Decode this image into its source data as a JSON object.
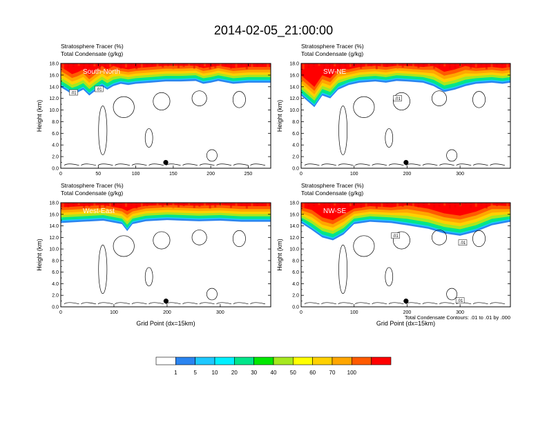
{
  "figure": {
    "title": "2014-02-05_21:00:00",
    "footnote": "Total Condensate Contours: .01 to .01 by .000"
  },
  "colorbar": {
    "colors": [
      "#ffffff",
      "#2a84f0",
      "#1ec8ff",
      "#00f0ff",
      "#00e58a",
      "#00e800",
      "#a6e81f",
      "#ffff00",
      "#ffd100",
      "#ffa600",
      "#ff5a00",
      "#ff0000"
    ],
    "labels": [
      "1",
      "5",
      "10",
      "20",
      "30",
      "40",
      "50",
      "60",
      "70",
      "100"
    ]
  },
  "chart_data": [
    {
      "type": "heatmap",
      "id": "p1",
      "label": "South-North",
      "title_lines": [
        "Stratosphere Tracer   (%)",
        "Total Condensate   (g/kg)"
      ],
      "xlabel": "",
      "ylabel": "Height (km)",
      "xlim": [
        0,
        280
      ],
      "ylim": [
        0,
        18
      ],
      "xticks": [
        0,
        50,
        100,
        150,
        200,
        250
      ],
      "yticks": [
        "0.0",
        "2.0",
        "4.0",
        "6.0",
        "8.0",
        "10.0",
        "12.0",
        "14.0",
        "16.0",
        "18.0"
      ],
      "marker": {
        "x": 140,
        "y": 1.0
      },
      "contour_labels": [
        {
          "text": ".01",
          "x": 17,
          "y": 12.9
        },
        {
          "text": ".01",
          "x": 51,
          "y": 13.5
        }
      ],
      "tracer_base": [
        [
          0,
          14.4
        ],
        [
          8,
          13.8
        ],
        [
          15,
          13.2
        ],
        [
          22,
          13.5
        ],
        [
          30,
          14.0
        ],
        [
          38,
          13.0
        ],
        [
          46,
          13.8
        ],
        [
          55,
          14.6
        ],
        [
          62,
          14.0
        ],
        [
          70,
          14.6
        ],
        [
          80,
          15.0
        ],
        [
          90,
          14.8
        ],
        [
          100,
          15.0
        ],
        [
          120,
          15.2
        ],
        [
          140,
          15.4
        ],
        [
          160,
          15.4
        ],
        [
          180,
          15.5
        ],
        [
          190,
          15.0
        ],
        [
          200,
          15.2
        ],
        [
          210,
          15.5
        ],
        [
          230,
          15.0
        ],
        [
          250,
          15.2
        ],
        [
          280,
          15.2
        ]
      ]
    },
    {
      "type": "heatmap",
      "id": "p2",
      "label": "SW-NE",
      "title_lines": [
        "Stratosphere Tracer   (%)",
        "Total Condensate   (g/kg)"
      ],
      "xlabel": "",
      "ylabel": "Height (km)",
      "xlim": [
        0,
        395
      ],
      "ylim": [
        0,
        18
      ],
      "xticks": [
        0,
        100,
        200,
        300
      ],
      "yticks": [
        "0.0",
        "2.0",
        "4.0",
        "6.0",
        "8.0",
        "10.0",
        "12.0",
        "14.0",
        "16.0",
        "18.0"
      ],
      "marker": {
        "x": 198,
        "y": 1.0
      },
      "contour_labels": [
        {
          "text": ".01",
          "x": 182,
          "y": 11.9
        }
      ],
      "tracer_base": [
        [
          0,
          13.0
        ],
        [
          10,
          12.2
        ],
        [
          25,
          11.0
        ],
        [
          40,
          13.0
        ],
        [
          55,
          12.5
        ],
        [
          70,
          14.0
        ],
        [
          90,
          14.8
        ],
        [
          110,
          15.2
        ],
        [
          140,
          15.4
        ],
        [
          160,
          15.2
        ],
        [
          180,
          15.5
        ],
        [
          200,
          15.4
        ],
        [
          230,
          15.2
        ],
        [
          250,
          14.6
        ],
        [
          270,
          13.6
        ],
        [
          290,
          14.0
        ],
        [
          310,
          14.6
        ],
        [
          330,
          15.0
        ],
        [
          360,
          15.2
        ],
        [
          380,
          15.0
        ],
        [
          395,
          15.2
        ]
      ]
    },
    {
      "type": "heatmap",
      "id": "p3",
      "label": "West-East",
      "title_lines": [
        "Stratosphere Tracer   (%)",
        "Total Condensate   (g/kg)"
      ],
      "xlabel": "Grid Point (dx=15km)",
      "ylabel": "Height (km)",
      "xlim": [
        0,
        395
      ],
      "ylim": [
        0,
        18
      ],
      "xticks": [
        0,
        100,
        200,
        300
      ],
      "yticks": [
        "0.0",
        "2.0",
        "4.0",
        "6.0",
        "8.0",
        "10.0",
        "12.0",
        "14.0",
        "16.0",
        "18.0"
      ],
      "marker": {
        "x": 198,
        "y": 1.0
      },
      "contour_labels": [],
      "tracer_base": [
        [
          0,
          15.0
        ],
        [
          40,
          15.2
        ],
        [
          80,
          15.4
        ],
        [
          115,
          14.8
        ],
        [
          125,
          13.6
        ],
        [
          135,
          14.8
        ],
        [
          160,
          15.3
        ],
        [
          200,
          15.5
        ],
        [
          260,
          15.3
        ],
        [
          300,
          15.4
        ],
        [
          340,
          15.2
        ],
        [
          395,
          15.2
        ]
      ]
    },
    {
      "type": "heatmap",
      "id": "p4",
      "label": "NW-SE",
      "title_lines": [
        "Stratosphere Tracer   (%)",
        "Total Condensate   (g/kg)"
      ],
      "xlabel": "Grid Point (dx=15km)",
      "ylabel": "Height (km)",
      "xlim": [
        0,
        395
      ],
      "ylim": [
        0,
        18
      ],
      "xticks": [
        0,
        100,
        200,
        300
      ],
      "yticks": [
        "0.0",
        "2.0",
        "4.0",
        "6.0",
        "8.0",
        "10.0",
        "12.0",
        "14.0",
        "16.0",
        "18.0"
      ],
      "marker": {
        "x": 198,
        "y": 1.0
      },
      "contour_labels": [
        {
          "text": ".01",
          "x": 178,
          "y": 12.2
        },
        {
          "text": ".01",
          "x": 305,
          "y": 11.0
        },
        {
          "text": ".01",
          "x": 300,
          "y": 1.0
        }
      ],
      "tracer_base": [
        [
          0,
          15.0
        ],
        [
          20,
          13.8
        ],
        [
          40,
          12.5
        ],
        [
          60,
          12.0
        ],
        [
          80,
          13.0
        ],
        [
          100,
          14.8
        ],
        [
          130,
          15.2
        ],
        [
          170,
          15.0
        ],
        [
          200,
          14.6
        ],
        [
          240,
          14.0
        ],
        [
          270,
          13.2
        ],
        [
          300,
          12.8
        ],
        [
          330,
          13.5
        ],
        [
          360,
          14.6
        ],
        [
          395,
          15.2
        ]
      ]
    }
  ]
}
